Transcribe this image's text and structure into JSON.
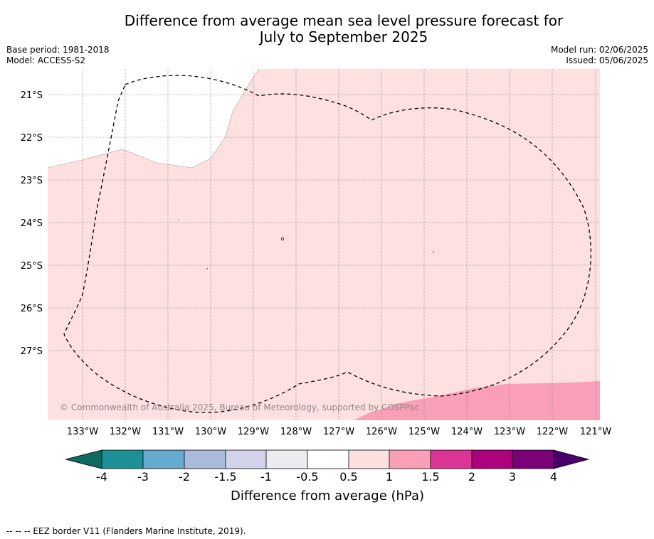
{
  "title": {
    "line1": "Difference from average mean sea level pressure forecast for",
    "line2": "July to September 2025"
  },
  "meta_left": {
    "base_period": "Base period: 1981-2018",
    "model": "Model: ACCESS-S2"
  },
  "meta_right": {
    "model_run": "Model run: 02/06/2025",
    "issued": "Issued: 05/06/2025"
  },
  "map": {
    "lat_labels": [
      "21°S",
      "22°S",
      "23°S",
      "24°S",
      "25°S",
      "26°S",
      "27°S"
    ],
    "lon_labels": [
      "133°W",
      "132°W",
      "131°W",
      "130°W",
      "129°W",
      "128°W",
      "127°W",
      "126°W",
      "125°W",
      "124°W",
      "123°W",
      "122°W",
      "121°W"
    ],
    "copyright": "© Commonwealth of Australia 2025, Bureau of Meteorology, supported by COSPPac",
    "colors": {
      "light_pink_0_5_to_1": "#fde0df",
      "pink_1_to_1_5": "#f99fb7",
      "white_neutral": "#ffffff"
    }
  },
  "colorbar": {
    "tick_labels": [
      "-4",
      "-3",
      "-2",
      "-1.5",
      "-1",
      "-0.5",
      "0.5",
      "1",
      "1.5",
      "2",
      "3",
      "4"
    ],
    "colors": [
      "#0f6a62",
      "#1d9097",
      "#67aacf",
      "#a8bbda",
      "#d2d2e8",
      "#ecebef",
      "#ffffff",
      "#fde0df",
      "#f99fb7",
      "#dd3497",
      "#ae017e",
      "#7a0177",
      "#49006a"
    ],
    "label": "Difference from average (hPa)"
  },
  "footer": "--  --  -- EEZ border V11 (Flanders Marine Institute, 2019)."
}
